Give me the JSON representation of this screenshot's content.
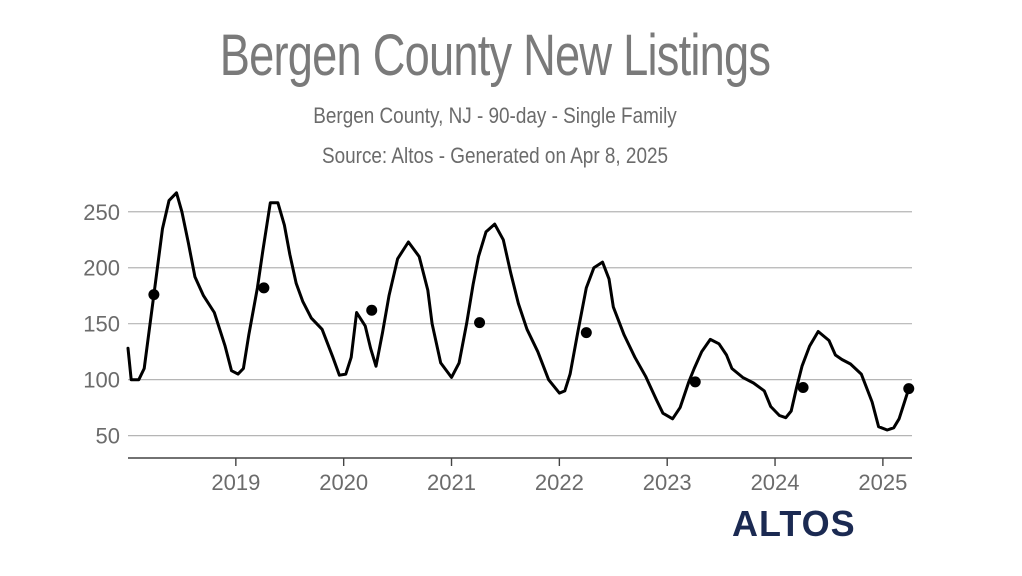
{
  "header": {
    "title": "Bergen County New Listings",
    "subtitle": "Bergen County, NJ - 90-day - Single Family",
    "source": "Source: Altos - Generated on Apr 8, 2025"
  },
  "brand": {
    "logo_text": "ALTOS",
    "color": "#1b2a52"
  },
  "chart_data": {
    "type": "line",
    "title": "Bergen County New Listings",
    "subtitle": "Bergen County, NJ - 90-day - Single Family",
    "xlabel": "",
    "ylabel": "",
    "xlim": [
      2018.0,
      2025.27
    ],
    "ylim": [
      30,
      265
    ],
    "x_ticks": [
      2019,
      2020,
      2021,
      2022,
      2023,
      2024,
      2025
    ],
    "x_tick_labels": [
      "2019",
      "2020",
      "2021",
      "2022",
      "2023",
      "2024",
      "2025"
    ],
    "y_ticks": [
      50,
      100,
      150,
      200,
      250
    ],
    "y_tick_labels": [
      "50",
      "100",
      "150",
      "200",
      "250"
    ],
    "grid": "horizontal",
    "line_color": "#000000",
    "series": [
      {
        "x": [
          2018.0,
          2018.03,
          2018.1,
          2018.15,
          2018.24,
          2018.32,
          2018.38,
          2018.45,
          2018.5,
          2018.56,
          2018.62,
          2018.7,
          2018.8,
          2018.9,
          2018.96,
          2019.02,
          2019.07,
          2019.12,
          2019.2,
          2019.25,
          2019.32,
          2019.39,
          2019.45,
          2019.5,
          2019.56,
          2019.62,
          2019.7,
          2019.8,
          2019.9,
          2019.96,
          2020.02,
          2020.07,
          2020.12,
          2020.2,
          2020.25,
          2020.3,
          2020.36,
          2020.42,
          2020.5,
          2020.6,
          2020.7,
          2020.78,
          2020.82,
          2020.9,
          2021.0,
          2021.07,
          2021.14,
          2021.2,
          2021.25,
          2021.32,
          2021.4,
          2021.48,
          2021.55,
          2021.62,
          2021.7,
          2021.8,
          2021.9,
          2022.0,
          2022.05,
          2022.1,
          2022.17,
          2022.25,
          2022.32,
          2022.4,
          2022.46,
          2022.5,
          2022.6,
          2022.7,
          2022.8,
          2022.9,
          2022.96,
          2023.05,
          2023.12,
          2023.2,
          2023.25,
          2023.32,
          2023.4,
          2023.48,
          2023.55,
          2023.6,
          2023.7,
          2023.8,
          2023.9,
          2023.96,
          2024.04,
          2024.1,
          2024.15,
          2024.2,
          2024.25,
          2024.32,
          2024.4,
          2024.5,
          2024.56,
          2024.62,
          2024.7,
          2024.8,
          2024.9,
          2024.96,
          2025.04,
          2025.1,
          2025.15,
          2025.2,
          2025.24
        ],
        "y": [
          128,
          100,
          100,
          110,
          176,
          235,
          260,
          267,
          250,
          222,
          192,
          175,
          160,
          130,
          108,
          105,
          110,
          140,
          182,
          215,
          258,
          258,
          238,
          212,
          186,
          170,
          155,
          145,
          120,
          104,
          105,
          120,
          160,
          148,
          128,
          112,
          142,
          175,
          208,
          223,
          210,
          180,
          150,
          115,
          102,
          115,
          150,
          185,
          210,
          232,
          239,
          225,
          195,
          168,
          145,
          125,
          100,
          88,
          90,
          105,
          142,
          182,
          200,
          205,
          190,
          165,
          140,
          120,
          103,
          82,
          70,
          65,
          75,
          98,
          110,
          125,
          136,
          132,
          122,
          110,
          102,
          97,
          90,
          76,
          68,
          66,
          72,
          93,
          112,
          130,
          143,
          135,
          122,
          118,
          114,
          105,
          80,
          58,
          55,
          57,
          65,
          80,
          92
        ]
      }
    ],
    "markers": [
      {
        "x": 2018.24,
        "y": 176
      },
      {
        "x": 2019.26,
        "y": 182
      },
      {
        "x": 2020.26,
        "y": 162
      },
      {
        "x": 2021.26,
        "y": 151
      },
      {
        "x": 2022.25,
        "y": 142
      },
      {
        "x": 2023.26,
        "y": 98
      },
      {
        "x": 2024.26,
        "y": 93
      },
      {
        "x": 2025.24,
        "y": 92
      }
    ]
  }
}
